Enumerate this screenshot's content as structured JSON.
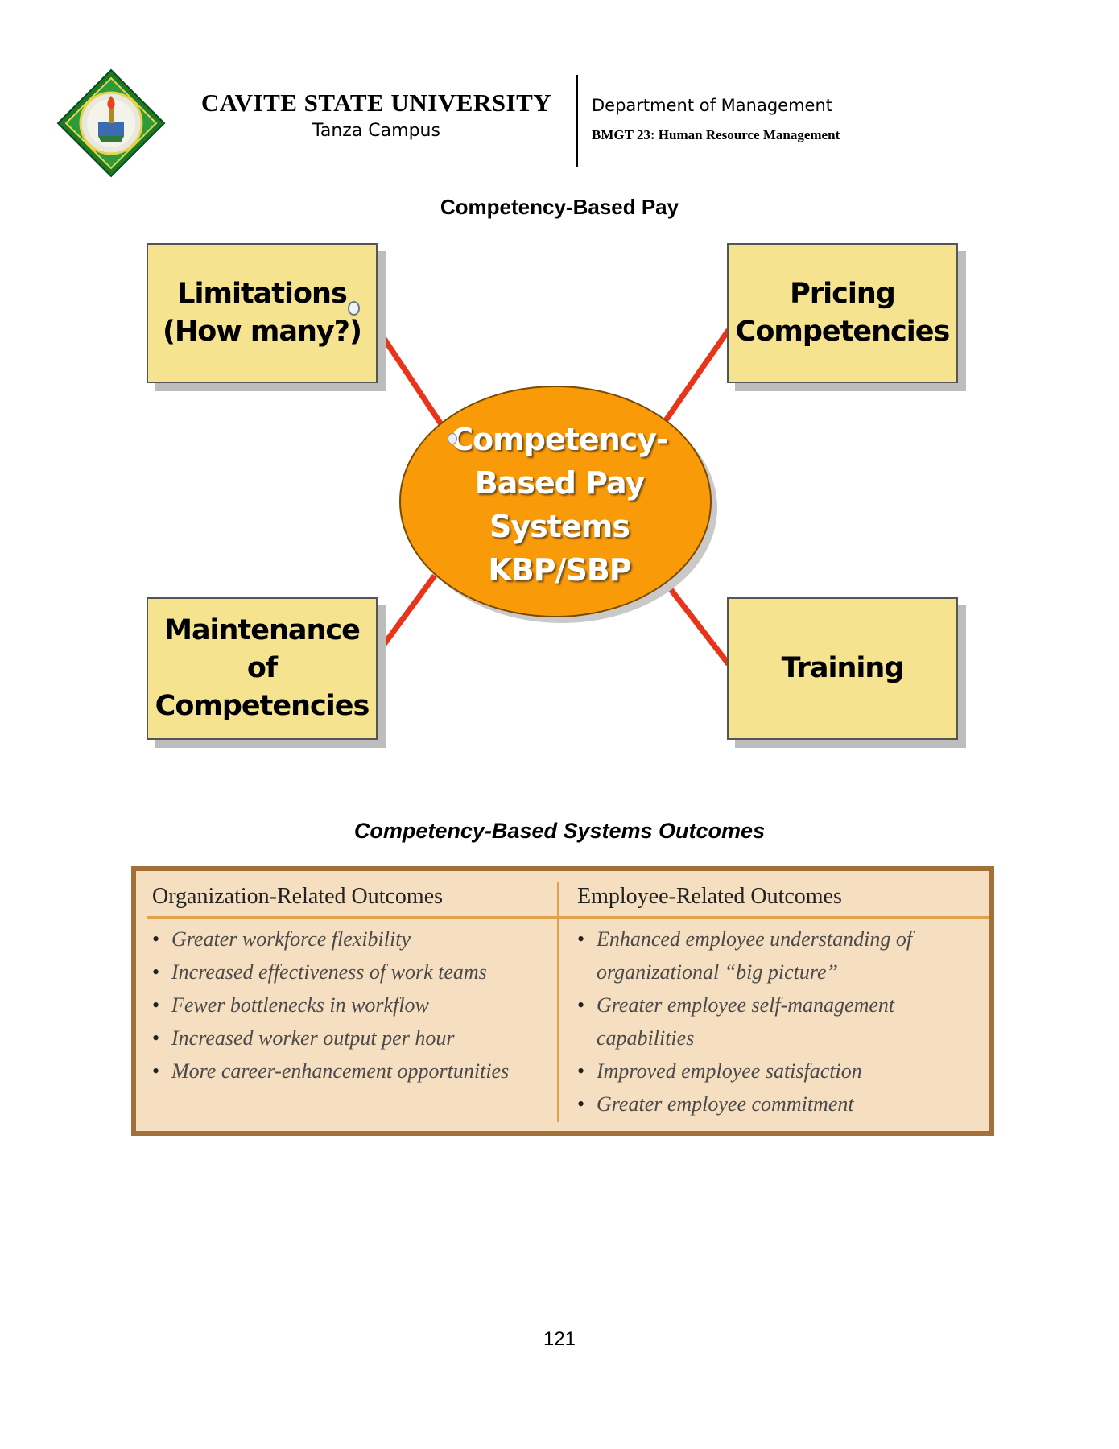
{
  "header": {
    "university": "CAVITE STATE UNIVERSITY",
    "campus": "Tanza Campus",
    "department": "Department of Management",
    "course": "BMGT 23: Human Resource Management",
    "logo_icon": "cvsu-seal-logo"
  },
  "diagram": {
    "title": "Competency-Based Pay",
    "center_lines": [
      "Competency-",
      "Based Pay",
      "Systems",
      "KBP/SBP"
    ],
    "boxes": {
      "top_left": [
        "Limitations",
        "(How many?)"
      ],
      "top_right": [
        "Pricing",
        "Competencies"
      ],
      "bottom_left": [
        "Maintenance of",
        "Competencies"
      ],
      "bottom_right": [
        "Training"
      ]
    },
    "colors": {
      "box_fill": "#f5e38f",
      "ellipse_fill": "#f99a08",
      "connector": "#e8351a"
    }
  },
  "outcomes": {
    "title": "Competency-Based Systems Outcomes",
    "organization": {
      "heading": "Organization-Related Outcomes",
      "items": [
        "Greater workforce flexibility",
        "Increased effectiveness of work teams",
        "Fewer bottlenecks in workflow",
        "Increased worker output per hour",
        "More career-enhancement opportunities"
      ]
    },
    "employee": {
      "heading": "Employee-Related Outcomes",
      "items": [
        "Enhanced employee understanding of organizational “big picture”",
        "Greater employee self-management capabilities",
        "Improved employee satisfaction",
        "Greater employee commitment"
      ]
    },
    "colors": {
      "fill": "#f5dfc0",
      "border": "#a4703a",
      "rule": "#e2a14c"
    }
  },
  "page_number": "121"
}
